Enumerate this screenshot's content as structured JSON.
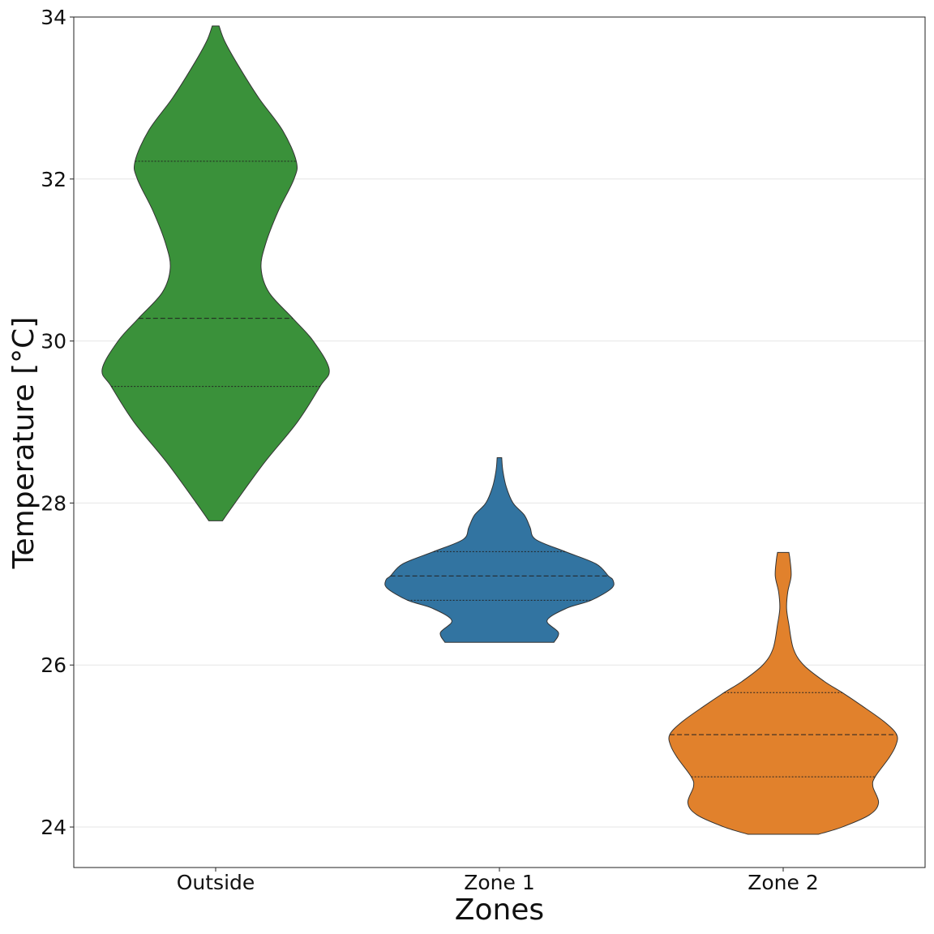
{
  "chart_data": {
    "type": "violin",
    "xlabel": "Zones",
    "ylabel": "Temperature [°C]",
    "ylim": [
      23.5,
      34
    ],
    "yticks": [
      24,
      26,
      28,
      30,
      32,
      34
    ],
    "ytick_labels": [
      "24",
      "26",
      "28",
      "30",
      "32",
      "34"
    ],
    "grid": "horizontal",
    "categories": [
      "Outside",
      "Zone 1",
      "Zone 2"
    ],
    "series": [
      {
        "category": "Outside",
        "color": "#3a913a",
        "min": 27.78,
        "max": 33.89,
        "quartiles": [
          29.44,
          30.28,
          32.22
        ],
        "profile": [
          [
            27.78,
            0.06
          ],
          [
            28.0,
            0.17
          ],
          [
            28.5,
            0.43
          ],
          [
            29.0,
            0.72
          ],
          [
            29.44,
            0.92
          ],
          [
            29.65,
            1.0
          ],
          [
            30.0,
            0.86
          ],
          [
            30.28,
            0.68
          ],
          [
            30.6,
            0.47
          ],
          [
            30.9,
            0.4
          ],
          [
            31.2,
            0.44
          ],
          [
            31.6,
            0.55
          ],
          [
            32.0,
            0.69
          ],
          [
            32.22,
            0.71
          ],
          [
            32.6,
            0.59
          ],
          [
            33.0,
            0.38
          ],
          [
            33.4,
            0.2
          ],
          [
            33.7,
            0.08
          ],
          [
            33.89,
            0.03
          ]
        ]
      },
      {
        "category": "Zone 1",
        "color": "#3274a1",
        "min": 26.28,
        "max": 28.56,
        "quartiles": [
          26.8,
          27.1,
          27.4
        ],
        "profile": [
          [
            26.28,
            0.48
          ],
          [
            26.4,
            0.52
          ],
          [
            26.55,
            0.42
          ],
          [
            26.7,
            0.59
          ],
          [
            26.8,
            0.81
          ],
          [
            26.95,
            0.99
          ],
          [
            27.05,
            1.0
          ],
          [
            27.1,
            0.96
          ],
          [
            27.25,
            0.85
          ],
          [
            27.4,
            0.58
          ],
          [
            27.55,
            0.32
          ],
          [
            27.7,
            0.27
          ],
          [
            27.85,
            0.22
          ],
          [
            28.0,
            0.12
          ],
          [
            28.2,
            0.06
          ],
          [
            28.4,
            0.03
          ],
          [
            28.56,
            0.02
          ]
        ]
      },
      {
        "category": "Zone 2",
        "color": "#e1812c",
        "min": 23.91,
        "max": 27.39,
        "quartiles": [
          24.62,
          25.14,
          25.66
        ],
        "profile": [
          [
            23.91,
            0.31
          ],
          [
            24.0,
            0.52
          ],
          [
            24.15,
            0.76
          ],
          [
            24.3,
            0.84
          ],
          [
            24.5,
            0.79
          ],
          [
            24.62,
            0.81
          ],
          [
            24.85,
            0.93
          ],
          [
            25.0,
            0.99
          ],
          [
            25.14,
            1.0
          ],
          [
            25.3,
            0.89
          ],
          [
            25.5,
            0.69
          ],
          [
            25.66,
            0.52
          ],
          [
            25.8,
            0.36
          ],
          [
            26.0,
            0.18
          ],
          [
            26.2,
            0.09
          ],
          [
            26.5,
            0.05
          ],
          [
            26.7,
            0.03
          ],
          [
            26.9,
            0.04
          ],
          [
            27.1,
            0.07
          ],
          [
            27.3,
            0.06
          ],
          [
            27.39,
            0.05
          ]
        ]
      }
    ]
  }
}
